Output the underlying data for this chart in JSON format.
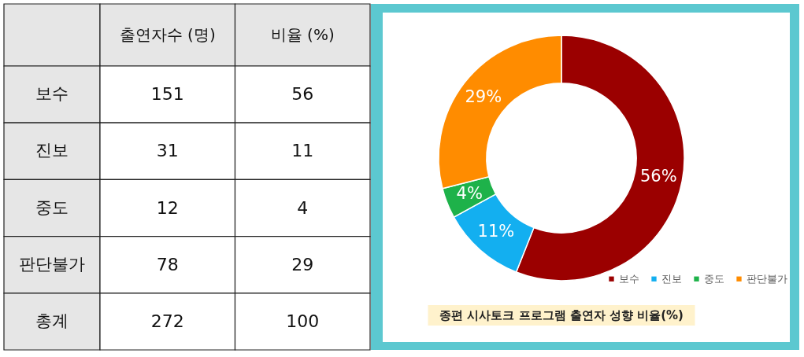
{
  "chart_data": [
    {
      "type": "other",
      "categories": [
        "보수",
        "진보",
        "중도",
        "판단불가",
        "총계"
      ],
      "series": [
        {
          "name": "출연자수 (명)",
          "values": [
            151,
            31,
            12,
            78,
            272
          ]
        },
        {
          "name": "비율 (%)",
          "values": [
            56,
            11,
            4,
            29,
            100
          ]
        }
      ],
      "data_labels": true
    },
    {
      "type": "donut",
      "categories": [
        "보수",
        "진보",
        "중도",
        "판단불가"
      ],
      "values": [
        56,
        11,
        4,
        29
      ],
      "colors": [
        "#9b0000",
        "#13aff0",
        "#1eb24a",
        "#ff8c00"
      ],
      "value_labels": [
        "56%",
        "11%",
        "4%",
        "29%"
      ],
      "legend": "bottom right",
      "annotations": [
        "종편 시사토크 프로그램 출연자 성향 비율(%)"
      ]
    }
  ]
}
